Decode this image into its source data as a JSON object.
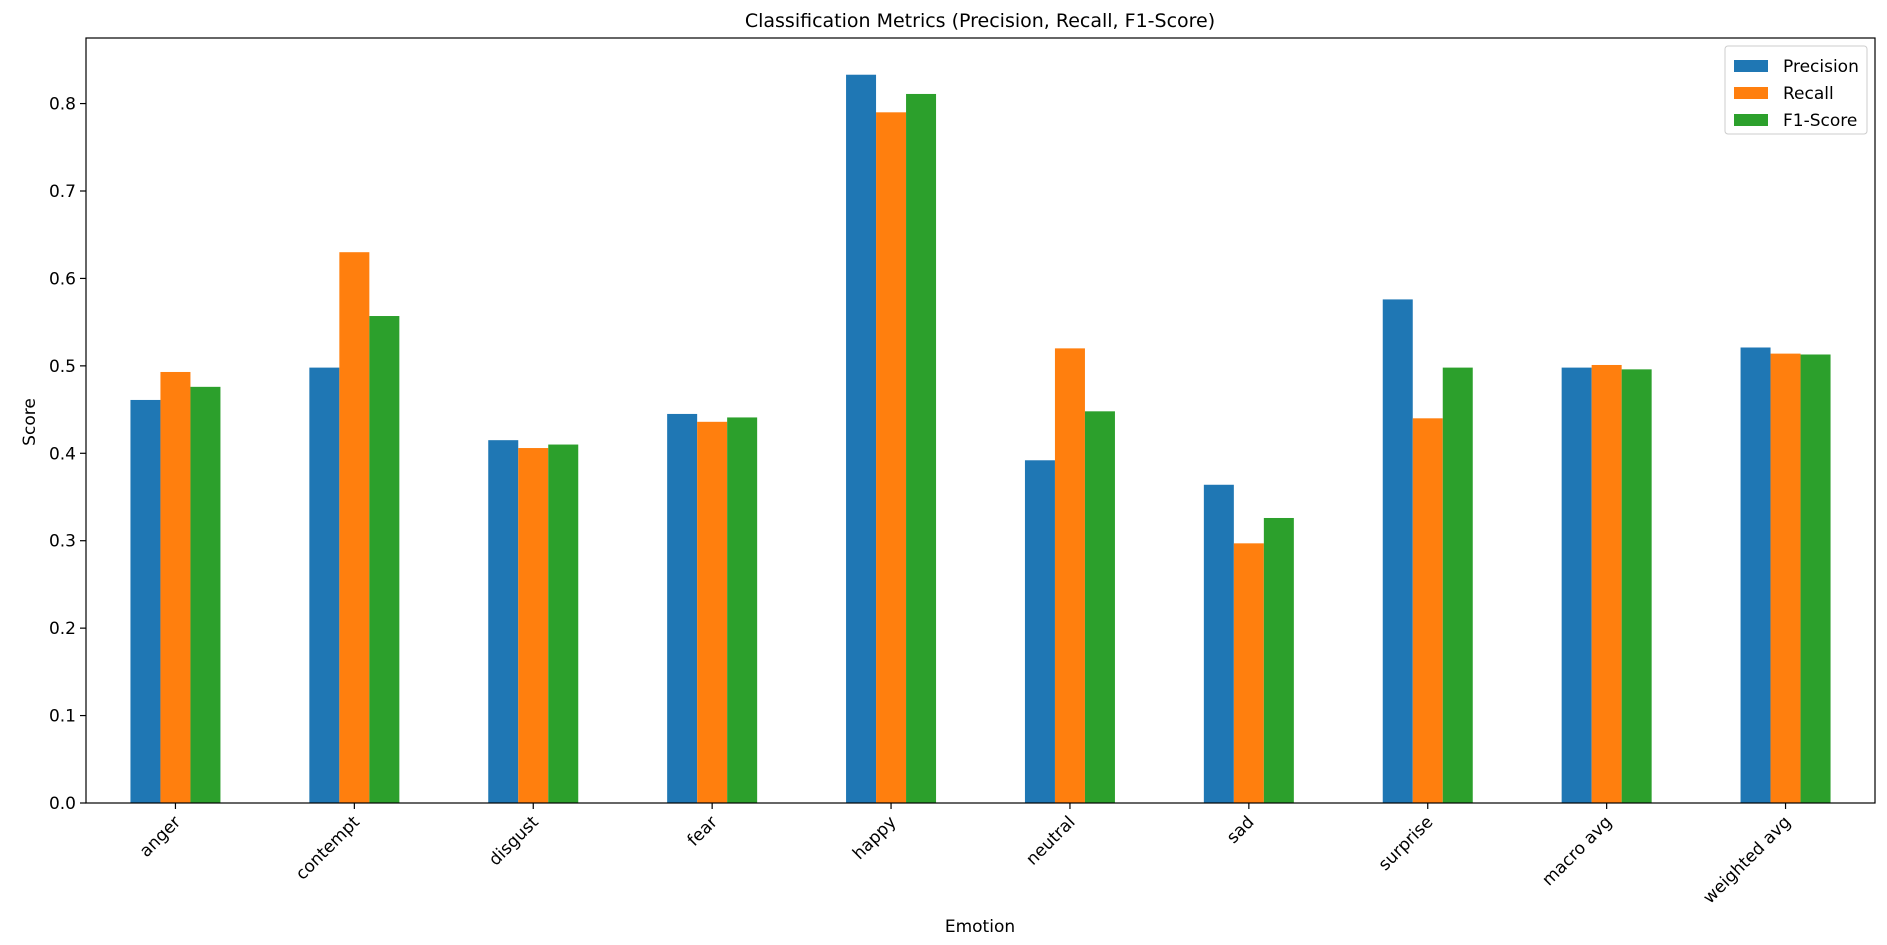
{
  "chart_data": {
    "type": "bar",
    "title": "Classification Metrics (Precision, Recall, F1-Score)",
    "xlabel": "Emotion",
    "ylabel": "Score",
    "ylim": [
      0,
      0.875
    ],
    "yticks": [
      "0.0",
      "0.1",
      "0.2",
      "0.3",
      "0.4",
      "0.5",
      "0.6",
      "0.7",
      "0.8"
    ],
    "grid": false,
    "legend_position": "top-right",
    "categories": [
      "anger",
      "contempt",
      "disgust",
      "fear",
      "happy",
      "neutral",
      "sad",
      "surprise",
      "macro avg",
      "weighted avg"
    ],
    "series": [
      {
        "name": "Precision",
        "color": "#1f77b4",
        "values": [
          0.461,
          0.498,
          0.415,
          0.445,
          0.833,
          0.392,
          0.364,
          0.576,
          0.498,
          0.521
        ]
      },
      {
        "name": "Recall",
        "color": "#ff7f0e",
        "values": [
          0.493,
          0.63,
          0.406,
          0.436,
          0.79,
          0.52,
          0.297,
          0.44,
          0.501,
          0.514
        ]
      },
      {
        "name": "F1-Score",
        "color": "#2ca02c",
        "values": [
          0.476,
          0.557,
          0.41,
          0.441,
          0.811,
          0.448,
          0.326,
          0.498,
          0.496,
          0.513
        ]
      }
    ]
  }
}
